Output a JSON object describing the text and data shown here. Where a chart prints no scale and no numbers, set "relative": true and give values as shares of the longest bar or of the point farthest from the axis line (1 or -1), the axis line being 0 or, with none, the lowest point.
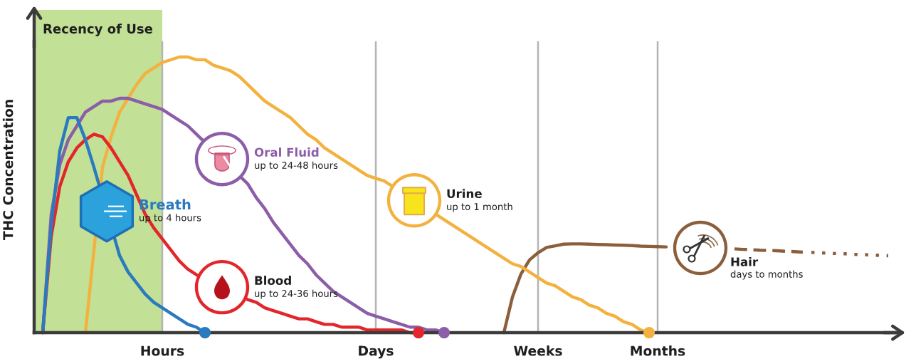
{
  "chart_data": {
    "type": "line",
    "relative": true,
    "ylabel": "THC Concentration",
    "categories": [
      null,
      null,
      null,
      null,
      null,
      null,
      null,
      null,
      null,
      null,
      null,
      null,
      null,
      null,
      null,
      "Hours",
      null,
      null,
      null,
      null,
      null,
      null,
      null,
      null,
      null,
      null,
      null,
      null,
      null,
      null,
      null,
      null,
      null,
      null,
      null,
      null,
      null,
      null,
      null,
      null,
      "Days",
      null,
      null,
      null,
      null,
      null,
      null,
      null,
      null,
      null,
      null,
      null,
      null,
      null,
      null,
      null,
      null,
      null,
      null,
      "Weeks",
      null,
      null,
      null,
      null,
      null,
      null,
      null,
      null,
      null,
      null,
      null,
      null,
      null,
      "Months",
      null,
      null,
      null,
      null,
      null,
      null,
      null,
      null,
      null,
      null,
      null,
      null,
      null,
      null,
      null,
      null,
      null,
      null,
      null,
      null,
      null,
      null,
      null,
      null,
      null,
      null,
      null,
      null
    ],
    "grid": "x",
    "line_style": "solid",
    "series": [
      {
        "name": "Breath",
        "color": "#2a7abf",
        "values": [
          null,
          0,
          0.39,
          0.66,
          0.78,
          0.78,
          0.7,
          0.6,
          null,
          null,
          0.28,
          0.22,
          0.18,
          0.14,
          0.11,
          0.09,
          0.07,
          0.05,
          0.03,
          0.02,
          0,
          null,
          null,
          null,
          null,
          null,
          null,
          null,
          null,
          null,
          null,
          null,
          null,
          null,
          null,
          null,
          null,
          null,
          null,
          null,
          null,
          null,
          null,
          null,
          null,
          null,
          null,
          null,
          null,
          null,
          null,
          null,
          null,
          null,
          null,
          null,
          null,
          null,
          null,
          null,
          null,
          null,
          null,
          null,
          null,
          null,
          null,
          null,
          null,
          null,
          null,
          null,
          null,
          null,
          null,
          null,
          null,
          null,
          null,
          null,
          null,
          null,
          null,
          null,
          null,
          null,
          null,
          null,
          null,
          null,
          null,
          null,
          null,
          null,
          null,
          null,
          null,
          null,
          null,
          null,
          null,
          null
        ]
      },
      {
        "name": "Blood",
        "color": "#e2262b",
        "values": [
          null,
          0,
          0.35,
          0.53,
          0.62,
          0.67,
          0.7,
          0.72,
          0.71,
          0.67,
          0.62,
          0.57,
          0.5,
          0.43,
          0.38,
          0.34,
          0.3,
          0.26,
          0.23,
          0.21,
          null,
          null,
          null,
          null,
          null,
          0.12,
          0.11,
          0.09,
          0.08,
          0.07,
          0.06,
          0.05,
          0.05,
          0.04,
          0.03,
          0.03,
          0.02,
          0.02,
          0.02,
          0.01,
          0.01,
          0.01,
          0.01,
          0.01,
          0,
          0,
          null,
          null,
          null,
          null,
          null,
          null,
          null,
          null,
          null,
          null,
          null,
          null,
          null,
          null,
          null,
          null,
          null,
          null,
          null,
          null,
          null,
          null,
          null,
          null,
          null,
          null,
          null,
          null,
          null,
          null,
          null,
          null,
          null,
          null,
          null,
          null,
          null,
          null,
          null,
          null,
          null,
          null,
          null,
          null,
          null,
          null,
          null,
          null,
          null,
          null,
          null,
          null,
          null,
          null,
          null,
          null
        ]
      },
      {
        "name": "Oral Fluid",
        "color": "#8c5da8",
        "values": [
          null,
          0,
          0.43,
          0.61,
          0.7,
          0.75,
          0.8,
          0.82,
          0.84,
          0.84,
          0.85,
          0.85,
          0.84,
          0.83,
          0.82,
          0.81,
          0.79,
          0.77,
          0.75,
          0.72,
          null,
          null,
          null,
          null,
          null,
          0.54,
          0.49,
          0.45,
          0.4,
          0.36,
          0.32,
          0.28,
          0.25,
          0.21,
          0.18,
          0.15,
          0.13,
          0.11,
          0.09,
          0.07,
          0.06,
          0.05,
          0.04,
          0.03,
          0.02,
          0.02,
          0.01,
          0.01,
          0,
          null,
          null,
          null,
          null,
          null,
          null,
          null,
          null,
          null,
          null,
          null,
          null,
          null,
          null,
          null,
          null,
          null,
          null,
          null,
          null,
          null,
          null,
          null,
          null,
          null,
          null,
          null,
          null,
          null,
          null,
          null,
          null,
          null,
          null,
          null,
          null,
          null,
          null,
          null,
          null,
          null,
          null,
          null,
          null,
          null,
          null,
          null,
          null,
          null,
          null,
          null,
          null,
          null
        ]
      },
      {
        "name": "Urine",
        "color": "#f3b23f",
        "values": [
          null,
          null,
          null,
          null,
          null,
          null,
          0,
          null,
          0.6,
          0.71,
          0.8,
          0.85,
          0.9,
          0.94,
          0.96,
          0.98,
          0.99,
          1.0,
          1.0,
          0.99,
          0.99,
          0.97,
          0.96,
          0.95,
          0.93,
          0.9,
          0.87,
          0.84,
          0.82,
          0.8,
          0.78,
          0.75,
          0.72,
          0.7,
          0.67,
          0.65,
          0.63,
          0.61,
          0.59,
          0.57,
          0.56,
          0.55,
          null,
          null,
          null,
          null,
          null,
          null,
          0.41,
          0.39,
          0.37,
          0.35,
          0.33,
          0.31,
          0.29,
          0.27,
          0.25,
          0.24,
          0.22,
          0.2,
          0.18,
          0.17,
          0.15,
          0.13,
          0.12,
          0.1,
          0.09,
          0.07,
          0.06,
          0.04,
          0.03,
          0.01,
          0,
          null,
          null,
          null,
          null,
          null,
          null,
          null,
          null,
          null,
          null,
          null,
          null,
          null,
          null,
          null,
          null,
          null,
          null,
          null,
          null,
          null,
          null,
          null,
          null,
          null,
          null,
          null,
          null,
          null
        ]
      },
      {
        "color": "#8b5e3c",
        "values": [
          null,
          null,
          null,
          null,
          null,
          null,
          null,
          null,
          null,
          null,
          null,
          null,
          null,
          null,
          null,
          null,
          null,
          null,
          null,
          null,
          null,
          null,
          null,
          null,
          null,
          null,
          null,
          null,
          null,
          null,
          null,
          null,
          null,
          null,
          null,
          null,
          null,
          null,
          null,
          null,
          null,
          null,
          null,
          null,
          null,
          null,
          null,
          null,
          null,
          null,
          null,
          null,
          null,
          null,
          null,
          0,
          0.129,
          0.213,
          0.264,
          0.29,
          0.309,
          0.315,
          0.321,
          0.322,
          0.322,
          0.321,
          0.32,
          0.319,
          0.318,
          0.317,
          0.316,
          0.314,
          0.313,
          0.312,
          0.311,
          null,
          null,
          null,
          null,
          null,
          null,
          null,
          null,
          null,
          null,
          null,
          null,
          null,
          null,
          null,
          null,
          null,
          null,
          null,
          null,
          null,
          null,
          null,
          null,
          null,
          null,
          null
        ]
      },
      {
        "name": "Hair",
        "color": "#8b5e3c",
        "line_style": "dashed",
        "values": [
          null,
          null,
          null,
          null,
          null,
          null,
          null,
          null,
          null,
          null,
          null,
          null,
          null,
          null,
          null,
          null,
          null,
          null,
          null,
          null,
          null,
          null,
          null,
          null,
          null,
          null,
          null,
          null,
          null,
          null,
          null,
          null,
          null,
          null,
          null,
          null,
          null,
          null,
          null,
          null,
          null,
          null,
          null,
          null,
          null,
          null,
          null,
          null,
          null,
          null,
          null,
          null,
          null,
          null,
          null,
          null,
          null,
          null,
          null,
          null,
          null,
          null,
          null,
          null,
          null,
          null,
          null,
          null,
          null,
          null,
          null,
          null,
          null,
          null,
          null,
          null,
          null,
          null,
          null,
          null,
          null,
          null,
          0.304,
          0.302,
          0.301,
          0.299,
          0.298,
          0.297,
          0.295,
          0.294,
          0.292,
          null,
          null,
          null,
          null,
          null,
          null,
          null,
          null,
          null,
          null,
          null
        ]
      },
      {
        "color": "#8b5e3c",
        "line_style": "dotted",
        "values": [
          null,
          null,
          null,
          null,
          null,
          null,
          null,
          null,
          null,
          null,
          null,
          null,
          null,
          null,
          null,
          null,
          null,
          null,
          null,
          null,
          null,
          null,
          null,
          null,
          null,
          null,
          null,
          null,
          null,
          null,
          null,
          null,
          null,
          null,
          null,
          null,
          null,
          null,
          null,
          null,
          null,
          null,
          null,
          null,
          null,
          null,
          null,
          null,
          null,
          null,
          null,
          null,
          null,
          null,
          null,
          null,
          null,
          null,
          null,
          null,
          null,
          null,
          null,
          null,
          null,
          null,
          null,
          null,
          null,
          null,
          null,
          null,
          null,
          null,
          null,
          null,
          null,
          null,
          null,
          null,
          null,
          null,
          null,
          null,
          null,
          null,
          null,
          null,
          null,
          null,
          null,
          0.291,
          0.29,
          0.288,
          0.287,
          0.286,
          0.284,
          0.283,
          0.282,
          0.28,
          0.279,
          null
        ]
      }
    ],
    "annotations": [
      "up to 4 hours",
      "up to 24-36 hours",
      "up to 24-48 hours",
      "up to 1 month",
      "days to months",
      "Recency of Use"
    ]
  }
}
